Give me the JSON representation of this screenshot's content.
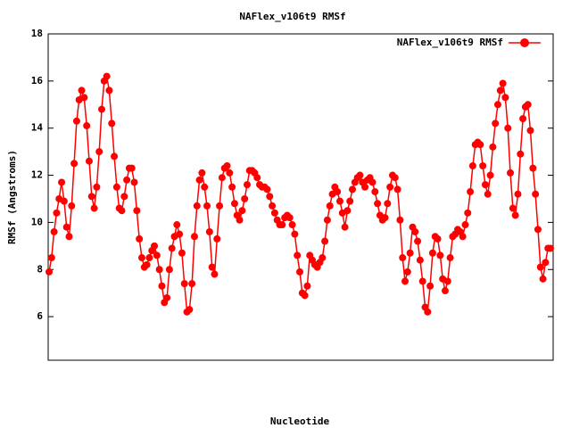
{
  "chart_data": {
    "type": "line",
    "title": "NAFlex_v106t9 RMSf",
    "x_label": "Nucleotide",
    "y_label": "RMSf (Angstroms)",
    "legend_position": "top-right",
    "series": [
      {
        "name": "NAFlex_v106t9 RMSf",
        "color": "#ff0000",
        "values": [
          7.9,
          8.5,
          9.6,
          10.4,
          11.0,
          11.7,
          10.9,
          9.8,
          9.4,
          10.7,
          12.5,
          14.3,
          15.2,
          15.6,
          15.3,
          14.1,
          12.6,
          11.1,
          10.6,
          11.5,
          13.0,
          14.8,
          16.0,
          16.2,
          15.6,
          14.2,
          12.8,
          11.5,
          10.6,
          10.5,
          11.1,
          11.8,
          12.3,
          12.3,
          11.7,
          10.5,
          9.3,
          8.5,
          8.1,
          8.2,
          8.5,
          8.8,
          9.0,
          8.6,
          8.0,
          7.3,
          6.6,
          6.8,
          8.0,
          8.9,
          9.4,
          9.9,
          9.5,
          8.7,
          7.4,
          6.2,
          6.3,
          7.4,
          9.4,
          10.7,
          11.8,
          12.1,
          11.5,
          10.7,
          9.6,
          8.1,
          7.8,
          9.3,
          10.7,
          11.9,
          12.3,
          12.4,
          12.1,
          11.5,
          10.8,
          10.3,
          10.1,
          10.5,
          11.0,
          11.6,
          12.2,
          12.2,
          12.1,
          11.9,
          11.6,
          11.5,
          11.5,
          11.4,
          11.1,
          10.7,
          10.4,
          10.1,
          9.9,
          9.9,
          10.2,
          10.3,
          10.2,
          9.9,
          9.5,
          8.6,
          7.9,
          7.0,
          6.9,
          7.3,
          8.6,
          8.4,
          8.2,
          8.1,
          8.3,
          8.5,
          9.2,
          10.1,
          10.7,
          11.2,
          11.5,
          11.3,
          10.9,
          10.4,
          9.8,
          10.5,
          10.9,
          11.4,
          11.7,
          11.9,
          12.0,
          11.7,
          11.5,
          11.8,
          11.9,
          11.7,
          11.3,
          10.8,
          10.3,
          10.1,
          10.2,
          10.8,
          11.5,
          12.0,
          11.9,
          11.4,
          10.1,
          8.5,
          7.5,
          7.9,
          8.7,
          9.8,
          9.6,
          9.2,
          8.4,
          7.5,
          6.4,
          6.2,
          7.3,
          8.7,
          9.4,
          9.3,
          8.6,
          7.6,
          7.1,
          7.5,
          8.5,
          9.4,
          9.5,
          9.7,
          9.6,
          9.4,
          9.9,
          10.4,
          11.3,
          12.4,
          13.3,
          13.4,
          13.3,
          12.4,
          11.6,
          11.2,
          12.0,
          13.2,
          14.2,
          15.0,
          15.6,
          15.9,
          15.3,
          14.0,
          12.1,
          10.6,
          10.3,
          11.2,
          12.9,
          14.4,
          14.9,
          15.0,
          13.9,
          12.3,
          11.2,
          9.7,
          8.1,
          7.6,
          8.3,
          8.9,
          8.9
        ]
      }
    ],
    "ylim": [
      4.15,
      18
    ],
    "yticks": [
      6,
      8,
      10,
      12,
      14,
      16,
      18
    ]
  }
}
